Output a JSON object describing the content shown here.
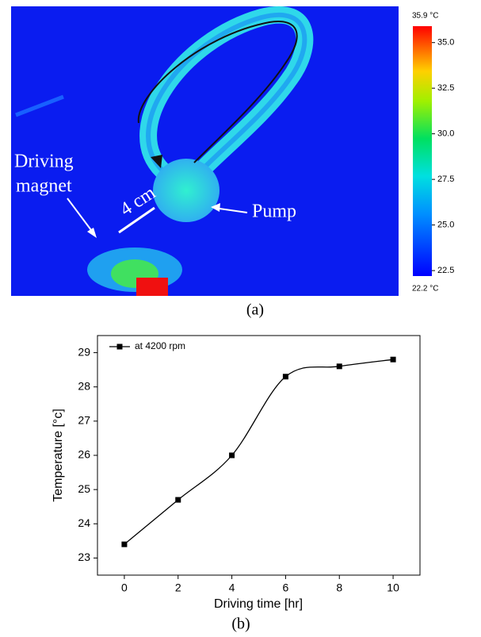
{
  "thermal_image": {
    "labels": {
      "magnet_line1": "Driving",
      "magnet_line2": "magnet",
      "distance": "4 cm",
      "pump": "Pump"
    },
    "caption": "(a)",
    "colorbar": {
      "clim": [
        {
          "value": 22.2,
          "label": "22.2 °C"
        },
        {
          "value": 35.9,
          "label": "35.9 °C"
        }
      ],
      "ticks": [
        {
          "value": 35,
          "label": "35.0"
        },
        {
          "value": 32.5,
          "label": "32.5"
        },
        {
          "value": 30,
          "label": "30.0"
        },
        {
          "value": 27.5,
          "label": "27.5"
        },
        {
          "value": 25,
          "label": "25.0"
        },
        {
          "value": 22.5,
          "label": "22.5"
        }
      ]
    }
  },
  "chart_data": {
    "type": "line",
    "caption": "(b)",
    "x_label": "Driving time [hr]",
    "y_label": "Temperature [°c]",
    "x": [
      0,
      2,
      4,
      6,
      8,
      10
    ],
    "series": [
      {
        "name": "at 4200 rpm",
        "color": "#000000",
        "values": [
          23.4,
          24.7,
          26.0,
          28.3,
          28.6,
          28.8
        ]
      }
    ],
    "xlim": [
      -1,
      11
    ],
    "ylim": [
      22.5,
      29.5
    ],
    "xticks": [
      0,
      2,
      4,
      6,
      8,
      10
    ],
    "yticks": [
      23,
      24,
      25,
      26,
      27,
      28,
      29
    ],
    "legend": "upper left",
    "grid": false
  }
}
